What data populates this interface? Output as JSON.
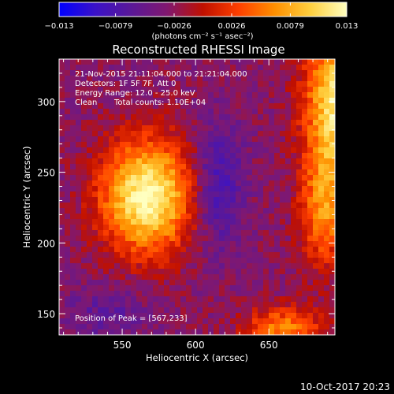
{
  "chart_data": {
    "type": "heatmap",
    "title": "Reconstructed RHESSI Image",
    "xlabel": "Heliocentric X (arcsec)",
    "ylabel": "Heliocentric Y (arcsec)",
    "xlim": [
      507,
      695
    ],
    "ylim": [
      135,
      330
    ],
    "x_ticks": [
      "550",
      "600",
      "650"
    ],
    "x_tick_values": [
      550,
      600,
      650
    ],
    "y_ticks": [
      "150",
      "200",
      "250",
      "300"
    ],
    "y_tick_values": [
      150,
      200,
      250,
      300
    ],
    "grid": false,
    "colorbar": {
      "position": "top",
      "min": -0.013,
      "max": 0.013,
      "tick_labels": [
        "−0.013",
        "−0.0079",
        "−0.0026",
        "0.0026",
        "0.0079",
        "0.013"
      ],
      "tick_values": [
        -0.013,
        -0.0079,
        -0.0026,
        0.0026,
        0.0079,
        0.013
      ],
      "units_label": "(photons cm⁻² s⁻¹ asec⁻²)"
    },
    "colormap_stops": [
      "#0000ff",
      "#3a12c8",
      "#5a1898",
      "#801870",
      "#c01000",
      "#ff4000",
      "#ff9000",
      "#ffd040",
      "#ffffc0"
    ],
    "background_value": -0.003,
    "sources": [
      {
        "x": 567,
        "y": 233,
        "peak_value": 0.013,
        "sigma_x": 22,
        "sigma_y": 28
      },
      {
        "x": 698,
        "y": 300,
        "peak_value": 0.012,
        "sigma_x": 16,
        "sigma_y": 35
      },
      {
        "x": 688,
        "y": 225,
        "peak_value": 0.006,
        "sigma_x": 12,
        "sigma_y": 30
      },
      {
        "x": 660,
        "y": 138,
        "peak_value": 0.006,
        "sigma_x": 18,
        "sigma_y": 12
      }
    ],
    "negative_regions": [
      {
        "x": 615,
        "y": 240,
        "value": -0.009,
        "sigma_x": 12,
        "sigma_y": 30
      },
      {
        "x": 540,
        "y": 150,
        "value": -0.006,
        "sigma_x": 20,
        "sigma_y": 15
      }
    ],
    "annotations": {
      "line1": "21-Nov-2015 21:11:04.000 to 21:21:04.000",
      "line2": "Detectors: 1F 5F 7F, Att 0",
      "line3": "Energy Range: 12.0 - 25.0 keV",
      "line4_left": "Clean",
      "line4_right": "Total counts: 1.10E+04",
      "peak": "Position of Peak = [567,233]"
    }
  },
  "footer": {
    "timestamp": "10-Oct-2017 20:23"
  }
}
